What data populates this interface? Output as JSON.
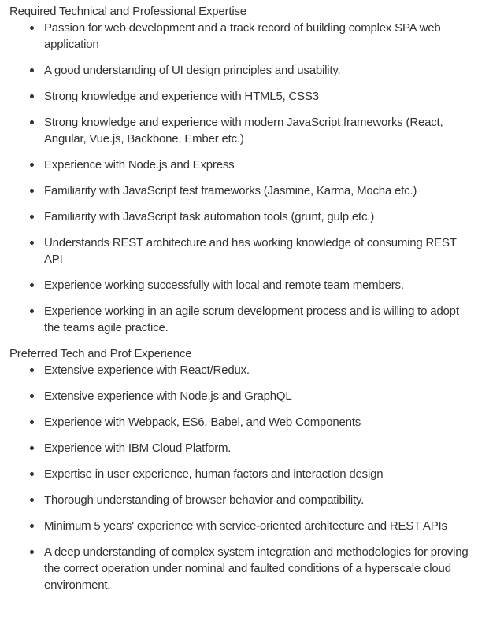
{
  "sections": [
    {
      "heading": "Required Technical and Professional Expertise",
      "items": [
        "Passion for web development and a track record of building complex SPA web application",
        "A good understanding of UI design principles and usability.",
        "Strong knowledge and experience with HTML5, CSS3",
        "Strong knowledge and experience with modern JavaScript frameworks (React, Angular, Vue.js, Backbone, Ember etc.)",
        "Experience with Node.js and Express",
        "Familiarity with JavaScript test frameworks (Jasmine, Karma, Mocha etc.)",
        "Familiarity with JavaScript task automation tools (grunt, gulp etc.)",
        "Understands REST architecture and has working knowledge of consuming REST API",
        "Experience working successfully with local and remote team members.",
        "Experience working in an agile scrum development process and is willing to adopt the teams agile practice."
      ]
    },
    {
      "heading": "Preferred Tech and Prof Experience",
      "items": [
        "Extensive experience with React/Redux.",
        "Extensive experience with Node.js and GraphQL",
        "Experience with Webpack, ES6, Babel, and Web Components",
        "Experience with IBM Cloud Platform.",
        "Expertise in user experience, human factors and interaction design",
        "Thorough understanding of browser behavior and compatibility.",
        "Minimum 5 years' experience with service-oriented architecture and REST APIs",
        "A deep understanding of complex system integration and methodologies for proving the correct operation under nominal and faulted conditions of a hyperscale cloud environment."
      ]
    }
  ]
}
